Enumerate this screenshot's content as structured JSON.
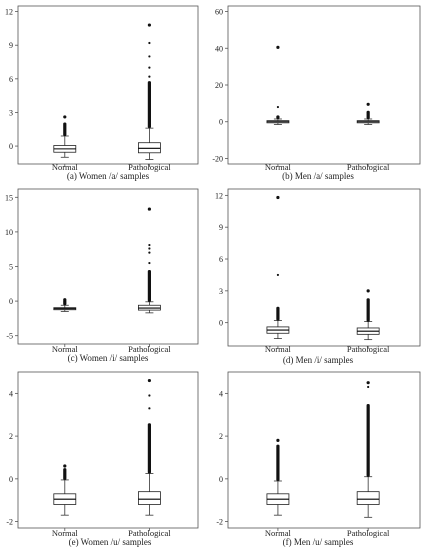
{
  "chart_data": [
    {
      "type": "boxplot",
      "caption": "(a) Women /a/ samples",
      "categories": [
        "Normal",
        "Pathological"
      ],
      "yticks": [
        0,
        3,
        6,
        9,
        12
      ],
      "ylim": [
        -1.6,
        12.5
      ],
      "boxes": [
        {
          "category": "Normal",
          "lower_whisker": -1.0,
          "q1": -0.55,
          "median": -0.25,
          "q3": 0.05,
          "upper_whisker": 0.9,
          "outliers_range": [
            0.9,
            2.1
          ],
          "max_outlier": 2.6
        },
        {
          "category": "Pathological",
          "lower_whisker": -1.2,
          "q1": -0.6,
          "median": -0.2,
          "q3": 0.3,
          "upper_whisker": 1.6,
          "outliers_range": [
            1.6,
            5.8
          ],
          "max_outlier": 10.8,
          "scattered_outliers": [
            6.2,
            7.0,
            8.0,
            9.2
          ]
        }
      ]
    },
    {
      "type": "boxplot",
      "caption": "(b) Men /a/ samples",
      "categories": [
        "Normal",
        "Pathological"
      ],
      "yticks": [
        -20,
        0,
        20,
        40,
        60
      ],
      "ylim": [
        -23,
        63
      ],
      "boxes": [
        {
          "category": "Normal",
          "lower_whisker": -1.5,
          "q1": -0.6,
          "median": 0.0,
          "q3": 0.6,
          "upper_whisker": 1.5,
          "outliers_range": [
            1.5,
            3.5
          ],
          "max_outlier": 40.5,
          "scattered_outliers": [
            8.0
          ]
        },
        {
          "category": "Pathological",
          "lower_whisker": -1.5,
          "q1": -0.6,
          "median": 0.0,
          "q3": 0.6,
          "upper_whisker": 1.5,
          "outliers_range": [
            1.5,
            6.0
          ],
          "max_outlier": 9.5
        }
      ]
    },
    {
      "type": "boxplot",
      "caption": "(c) Women /i/ samples",
      "categories": [
        "Normal",
        "Pathological"
      ],
      "yticks": [
        -5,
        0,
        5,
        10,
        15
      ],
      "ylim": [
        -6.2,
        16.2
      ],
      "boxes": [
        {
          "category": "Normal",
          "lower_whisker": -1.5,
          "q1": -1.25,
          "median": -1.1,
          "q3": -0.95,
          "upper_whisker": -0.6,
          "outliers_range": [
            -0.6,
            0.2
          ],
          "max_outlier": 0.2
        },
        {
          "category": "Pathological",
          "lower_whisker": -1.7,
          "q1": -1.3,
          "median": -1.0,
          "q3": -0.6,
          "upper_whisker": -0.1,
          "outliers_range": [
            -0.1,
            4.5
          ],
          "max_outlier": 13.3,
          "scattered_outliers": [
            5.5,
            7.0,
            7.6,
            8.1
          ]
        }
      ]
    },
    {
      "type": "boxplot",
      "caption": "(d) Men /i/ samples",
      "categories": [
        "Normal",
        "Pathological"
      ],
      "yticks": [
        0,
        3,
        6,
        9,
        12
      ],
      "ylim": [
        -2.2,
        12.6
      ],
      "boxes": [
        {
          "category": "Normal",
          "lower_whisker": -1.5,
          "q1": -1.0,
          "median": -0.7,
          "q3": -0.4,
          "upper_whisker": 0.2,
          "outliers_range": [
            0.2,
            1.5
          ],
          "max_outlier": 11.8,
          "scattered_outliers": [
            4.5
          ]
        },
        {
          "category": "Pathological",
          "lower_whisker": -1.6,
          "q1": -1.1,
          "median": -0.8,
          "q3": -0.5,
          "upper_whisker": 0.1,
          "outliers_range": [
            0.1,
            2.3
          ],
          "max_outlier": 3.0
        }
      ]
    },
    {
      "type": "boxplot",
      "caption": "(e) Women /u/ samples",
      "categories": [
        "Normal",
        "Pathological"
      ],
      "yticks": [
        -2,
        0,
        2,
        4
      ],
      "ylim": [
        -2.3,
        5.0
      ],
      "boxes": [
        {
          "category": "Normal",
          "lower_whisker": -1.7,
          "q1": -1.2,
          "median": -0.95,
          "q3": -0.7,
          "upper_whisker": -0.05,
          "outliers_range": [
            -0.05,
            0.5
          ],
          "max_outlier": 0.6
        },
        {
          "category": "Pathological",
          "lower_whisker": -1.7,
          "q1": -1.2,
          "median": -0.95,
          "q3": -0.6,
          "upper_whisker": 0.25,
          "outliers_range": [
            0.25,
            2.6
          ],
          "max_outlier": 4.6,
          "scattered_outliers": [
            3.3,
            3.9
          ]
        }
      ]
    },
    {
      "type": "boxplot",
      "caption": "(f) Men /u/ samples",
      "categories": [
        "Normal",
        "Pathological"
      ],
      "yticks": [
        -2,
        0,
        2,
        4
      ],
      "ylim": [
        -2.3,
        5.0
      ],
      "boxes": [
        {
          "category": "Normal",
          "lower_whisker": -1.7,
          "q1": -1.2,
          "median": -0.95,
          "q3": -0.7,
          "upper_whisker": -0.1,
          "outliers_range": [
            -0.1,
            1.6
          ],
          "max_outlier": 1.8
        },
        {
          "category": "Pathological",
          "lower_whisker": -1.8,
          "q1": -1.2,
          "median": -0.95,
          "q3": -0.6,
          "upper_whisker": 0.1,
          "outliers_range": [
            0.1,
            3.5
          ],
          "max_outlier": 4.5,
          "scattered_outliers": [
            4.3
          ]
        }
      ]
    }
  ]
}
